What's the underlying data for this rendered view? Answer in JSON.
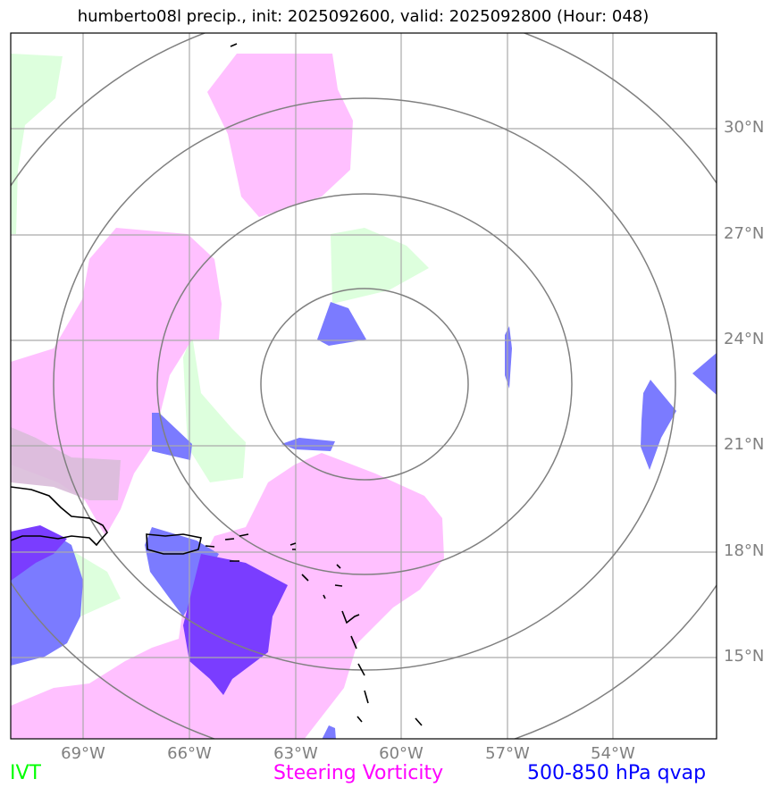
{
  "title": "humberto08l precip., init: 2025092600, valid: 2025092800 (Hour: 048)",
  "lat_labels": [
    "30°N",
    "27°N",
    "24°N",
    "21°N",
    "18°N",
    "15°N"
  ],
  "lon_labels": [
    "69°W",
    "66°W",
    "63°W",
    "60°W",
    "57°W",
    "54°W"
  ],
  "legend": {
    "ivt": {
      "label": "IVT",
      "color": "#00ff00"
    },
    "steering_vorticity": {
      "label": "Steering Vorticity",
      "color": "#ff00ff"
    },
    "qvap": {
      "label": "500-850 hPa qvap",
      "color": "#0000ff"
    }
  },
  "layer_colors": {
    "ivt_fill": "#ddffdd",
    "vorticity_fill": "#ffc0ff",
    "qvap_fill": "#7b7bff",
    "qvap_dark": "#7a3dff",
    "range_rings": "#808080",
    "gridlines": "#aaaaaa",
    "coastline": "#000000"
  }
}
